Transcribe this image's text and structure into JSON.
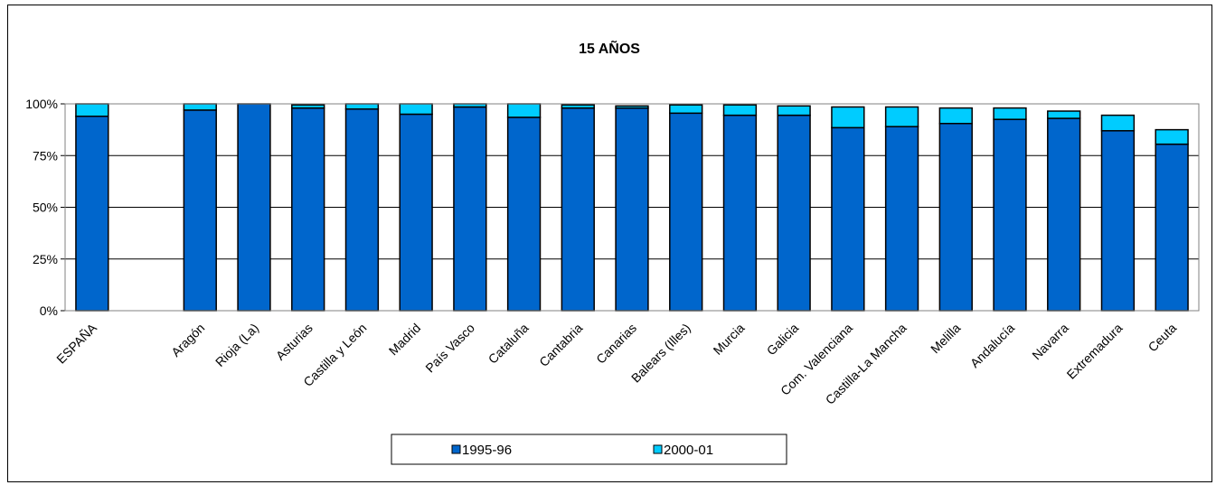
{
  "chart_data": {
    "type": "bar",
    "stacked": true,
    "title": "15 AÑOS",
    "xlabel": "",
    "ylabel": "",
    "ylim": [
      0,
      100
    ],
    "yticks": [
      "0%",
      "25%",
      "50%",
      "75%",
      "100%"
    ],
    "grid": true,
    "legend_position": "bottom",
    "categories": [
      "ESPAÑA",
      "",
      "Aragón",
      "Rioja (La)",
      "Asturias",
      "Castilla y León",
      "Madrid",
      "País Vasco",
      "Cataluña",
      "Cantabria",
      "Canarias",
      "Balears (Illes)",
      "Murcia",
      "Galicia",
      "Com. Valenciana",
      "Castilla-La Mancha",
      "Melilla",
      "Andalucía",
      "Navarra",
      "Extremadura",
      "Ceuta"
    ],
    "series": [
      {
        "name": "1995-96",
        "color": "#0066CC",
        "values": [
          94,
          null,
          97,
          100,
          98,
          97.5,
          95,
          98.5,
          93.5,
          98,
          98,
          95.5,
          94.5,
          94.5,
          88.5,
          89,
          90.5,
          92.5,
          93,
          87,
          80.5
        ]
      },
      {
        "name": "2000-01",
        "color": "#00CCFF",
        "values": [
          6,
          null,
          3,
          0,
          1.5,
          2.5,
          5,
          1.5,
          6.5,
          1.5,
          1,
          4,
          5,
          4.5,
          10,
          9.5,
          7.5,
          5.5,
          3.5,
          7.5,
          7
        ]
      }
    ]
  }
}
